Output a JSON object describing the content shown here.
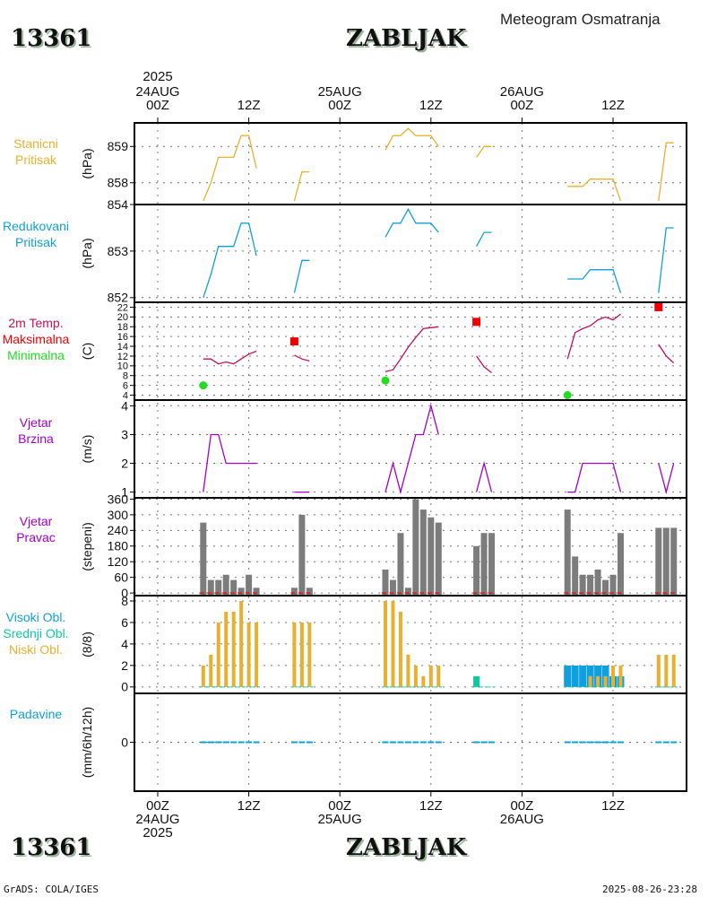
{
  "header": {
    "station_id": "13361",
    "station_name": "ZABLJAK",
    "subtitle": "Meteogram Osmatranja"
  },
  "footer": {
    "station_id": "13361",
    "station_name": "ZABLJAK",
    "credit": "GrADS: COLA/IGES",
    "timestamp": "2025-08-26-23:28"
  },
  "colors": {
    "station_pressure": "#e8b030",
    "reduced_pressure": "#10a0d8",
    "temperature": "#c0105a",
    "tmax": "#ee0000",
    "tmin": "#22dd22",
    "wind": "#a000c8",
    "wind_dir_bar": "#7c7c7c",
    "high_cloud": "#10a0e0",
    "mid_cloud": "#10c8a0",
    "low_cloud": "#e8b030",
    "precip": "#10a0d8"
  },
  "time_axis": {
    "top_year": "2025",
    "ticks": [
      {
        "hour": 0,
        "time": "00Z",
        "date": "24AUG",
        "year": "2025"
      },
      {
        "hour": 12,
        "time": "12Z",
        "date": "",
        "year": ""
      },
      {
        "hour": 24,
        "time": "00Z",
        "date": "25AUG",
        "year": ""
      },
      {
        "hour": 36,
        "time": "12Z",
        "date": "",
        "year": ""
      },
      {
        "hour": 48,
        "time": "00Z",
        "date": "26AUG",
        "year": ""
      },
      {
        "hour": 60,
        "time": "12Z",
        "date": "",
        "year": ""
      }
    ]
  },
  "chart_data": [
    {
      "id": "station_pressure",
      "type": "line",
      "title": "Stanicni Pritisak",
      "label_lines": [
        "Stanicni",
        "Pritisak"
      ],
      "ylabel": "(hPa)",
      "ylim": [
        857.4,
        859.65
      ],
      "yticks": [
        858,
        859
      ],
      "x_unit": "hours since 2025-08-24 00Z",
      "segments": [
        {
          "x": [
            6,
            7,
            8,
            9,
            10,
            11,
            12,
            13
          ],
          "y": [
            857.5,
            858.0,
            858.7,
            858.7,
            858.7,
            859.3,
            859.3,
            858.4
          ]
        },
        {
          "x": [
            18,
            19,
            20
          ],
          "y": [
            857.5,
            858.3,
            858.3
          ]
        },
        {
          "x": [
            30,
            31,
            32,
            33,
            34,
            35,
            36,
            37
          ],
          "y": [
            858.9,
            859.3,
            859.3,
            859.5,
            859.3,
            859.3,
            859.3,
            859.0
          ]
        },
        {
          "x": [
            42,
            43,
            44
          ],
          "y": [
            858.7,
            859.0,
            859.0
          ]
        },
        {
          "x": [
            54,
            55,
            56,
            57,
            58,
            59,
            60,
            61
          ],
          "y": [
            857.9,
            857.9,
            857.9,
            858.1,
            858.1,
            858.1,
            858.1,
            857.5
          ]
        },
        {
          "x": [
            66,
            67,
            68
          ],
          "y": [
            857.5,
            859.1,
            859.1
          ]
        }
      ]
    },
    {
      "id": "reduced_pressure",
      "type": "line",
      "title": "Redukovani Pritisak",
      "label_lines": [
        "Redukovani",
        "Pritisak"
      ],
      "ylabel": "(hPa)",
      "ylim": [
        851.9,
        854.0
      ],
      "yticks": [
        852,
        853,
        854
      ],
      "x_unit": "hours since 2025-08-24 00Z",
      "segments": [
        {
          "x": [
            6,
            7,
            8,
            9,
            10,
            11,
            12,
            13
          ],
          "y": [
            852.0,
            852.5,
            853.1,
            853.1,
            853.1,
            853.6,
            853.6,
            852.9
          ]
        },
        {
          "x": [
            18,
            19,
            20
          ],
          "y": [
            852.1,
            852.8,
            852.8
          ]
        },
        {
          "x": [
            30,
            31,
            32,
            33,
            34,
            35,
            36,
            37
          ],
          "y": [
            853.3,
            853.6,
            853.6,
            853.9,
            853.6,
            853.6,
            853.6,
            853.4
          ]
        },
        {
          "x": [
            42,
            43,
            44
          ],
          "y": [
            853.1,
            853.4,
            853.4
          ]
        },
        {
          "x": [
            54,
            55,
            56,
            57,
            58,
            59,
            60,
            61
          ],
          "y": [
            852.4,
            852.4,
            852.4,
            852.6,
            852.6,
            852.6,
            852.6,
            852.1
          ]
        },
        {
          "x": [
            66,
            67,
            68
          ],
          "y": [
            852.1,
            853.5,
            853.5
          ]
        }
      ]
    },
    {
      "id": "temperature",
      "type": "line",
      "title": "2m Temp. / Maksimalna / Minimalna",
      "label_lines": [
        "2m Temp.",
        "Maksimalna",
        "Minimalna"
      ],
      "ylabel": "(C)",
      "ylim": [
        3,
        23
      ],
      "yticks": [
        4,
        6,
        8,
        10,
        12,
        14,
        16,
        18,
        20,
        22
      ],
      "x_unit": "hours since 2025-08-24 00Z",
      "segments": [
        {
          "x": [
            6,
            7,
            8,
            9,
            10,
            11,
            12,
            13
          ],
          "y": [
            11.4,
            11.4,
            10.4,
            10.8,
            10.4,
            11.4,
            12.4,
            13.0
          ]
        },
        {
          "x": [
            18,
            19,
            20
          ],
          "y": [
            12.2,
            11.4,
            11.0
          ]
        },
        {
          "x": [
            30,
            31,
            32,
            33,
            34,
            35,
            36,
            37
          ],
          "y": [
            8.8,
            9.2,
            11.4,
            13.8,
            15.8,
            17.6,
            17.8,
            18.0
          ]
        },
        {
          "x": [
            42,
            43,
            44
          ],
          "y": [
            12.0,
            9.8,
            8.6
          ]
        },
        {
          "x": [
            54,
            55,
            56,
            57,
            58,
            59,
            60,
            61
          ],
          "y": [
            11.4,
            16.8,
            17.6,
            18.2,
            19.4,
            20.0,
            19.4,
            20.6
          ]
        },
        {
          "x": [
            66,
            67,
            68
          ],
          "y": [
            14.4,
            12.0,
            10.6
          ]
        }
      ],
      "tmax": [
        {
          "x": 18,
          "y": 15
        },
        {
          "x": 42,
          "y": 19
        },
        {
          "x": 66,
          "y": 22
        }
      ],
      "tmin": [
        {
          "x": 6,
          "y": 6
        },
        {
          "x": 30,
          "y": 7
        },
        {
          "x": 54,
          "y": 4
        }
      ]
    },
    {
      "id": "wind_speed",
      "type": "line",
      "title": "Vjetar Brzina",
      "label_lines": [
        "Vjetar",
        "Brzina"
      ],
      "ylabel": "(m/s)",
      "ylim": [
        0.8,
        4.2
      ],
      "yticks": [
        1,
        2,
        3,
        4
      ],
      "x_unit": "hours since 2025-08-24 00Z",
      "segments": [
        {
          "x": [
            6,
            7,
            8,
            9,
            10,
            11,
            12,
            13
          ],
          "y": [
            1,
            3,
            3,
            2,
            2,
            2,
            2,
            2
          ]
        },
        {
          "x": [
            18,
            19,
            20
          ],
          "y": [
            1,
            1,
            1
          ]
        },
        {
          "x": [
            30,
            31,
            32,
            33,
            34,
            35,
            36,
            37
          ],
          "y": [
            1,
            2,
            1,
            2,
            3,
            3,
            4,
            3
          ]
        },
        {
          "x": [
            42,
            43,
            44
          ],
          "y": [
            1,
            2,
            1
          ]
        },
        {
          "x": [
            54,
            55,
            56,
            57,
            58,
            59,
            60,
            61
          ],
          "y": [
            1,
            1,
            2,
            2,
            2,
            2,
            2,
            1
          ]
        },
        {
          "x": [
            66,
            67,
            68
          ],
          "y": [
            2,
            1,
            2
          ]
        }
      ]
    },
    {
      "id": "wind_direction",
      "type": "bar",
      "title": "Vjetar Pravac",
      "label_lines": [
        "Vjetar",
        "Pravac"
      ],
      "ylabel": "(stepeni)",
      "ylim": [
        -10,
        365
      ],
      "yticks": [
        0,
        60,
        120,
        180,
        240,
        300,
        360
      ],
      "x_unit": "hours since 2025-08-24 00Z",
      "x": [
        6,
        7,
        8,
        9,
        10,
        11,
        12,
        13,
        18,
        19,
        20,
        30,
        31,
        32,
        33,
        34,
        35,
        36,
        37,
        42,
        43,
        44,
        54,
        55,
        56,
        57,
        58,
        59,
        60,
        61,
        66,
        67,
        68
      ],
      "values": [
        270,
        50,
        50,
        70,
        50,
        20,
        70,
        20,
        20,
        300,
        20,
        90,
        50,
        230,
        20,
        360,
        320,
        290,
        270,
        180,
        230,
        230,
        320,
        140,
        70,
        70,
        90,
        50,
        70,
        230,
        250,
        250,
        250
      ]
    },
    {
      "id": "cloud_cover",
      "type": "bar",
      "title": "Visoki Obl. / Srednji Obl. / Niski Obl.",
      "label_lines": [
        "Visoki Obl.",
        "Srednji Obl.",
        "Niski Obl."
      ],
      "ylabel": "(8/8)",
      "ylim": [
        -0.6,
        8.5
      ],
      "yticks": [
        0,
        2,
        4,
        6,
        8
      ],
      "x_unit": "hours since 2025-08-24 00Z",
      "x": [
        6,
        7,
        8,
        9,
        10,
        11,
        12,
        13,
        18,
        19,
        20,
        30,
        31,
        32,
        33,
        34,
        35,
        36,
        37,
        42,
        43,
        44,
        54,
        55,
        56,
        57,
        58,
        59,
        60,
        61,
        66,
        67,
        68
      ],
      "series": [
        {
          "name": "Visoki Obl.",
          "values": [
            0,
            0,
            0,
            0,
            0,
            0,
            0,
            0,
            0,
            0,
            0,
            0,
            0,
            0,
            0,
            0,
            0,
            0,
            0,
            0,
            0,
            0,
            2,
            2,
            2,
            2,
            2,
            2,
            1,
            1,
            0,
            0,
            0
          ]
        },
        {
          "name": "Srednji Obl.",
          "values": [
            0,
            0,
            0,
            0,
            0,
            0,
            0,
            0,
            0,
            0,
            0,
            0,
            0,
            0,
            0,
            0,
            0,
            0,
            0,
            1,
            0,
            0,
            0,
            0,
            0,
            0,
            0,
            0,
            0,
            0,
            0,
            0,
            0
          ]
        },
        {
          "name": "Niski Obl.",
          "values": [
            2,
            3,
            6,
            7,
            7,
            8,
            6,
            6,
            6,
            6,
            6,
            8,
            8,
            7,
            3,
            2,
            1,
            2,
            2,
            0,
            0,
            0,
            0,
            0,
            0,
            1,
            1,
            1,
            2,
            2,
            3,
            3,
            3
          ]
        }
      ]
    },
    {
      "id": "precipitation",
      "type": "bar",
      "title": "Padavine",
      "label_lines": [
        "Padavine"
      ],
      "ylabel": "(mm/6h/12h)",
      "ylim": [
        -1,
        1
      ],
      "yticks": [
        0
      ],
      "x_unit": "hours since 2025-08-24 00Z",
      "x": [
        6,
        7,
        8,
        9,
        10,
        11,
        12,
        13,
        18,
        19,
        20,
        30,
        31,
        32,
        33,
        34,
        35,
        36,
        37,
        42,
        43,
        44,
        54,
        55,
        56,
        57,
        58,
        59,
        60,
        61,
        66,
        67,
        68
      ],
      "values": [
        0,
        0,
        0,
        0,
        0,
        0,
        0,
        0,
        0,
        0,
        0,
        0,
        0,
        0,
        0,
        0,
        0,
        0,
        0,
        0,
        0,
        0,
        0,
        0,
        0,
        0,
        0,
        0,
        0,
        0,
        0,
        0,
        0
      ]
    }
  ]
}
